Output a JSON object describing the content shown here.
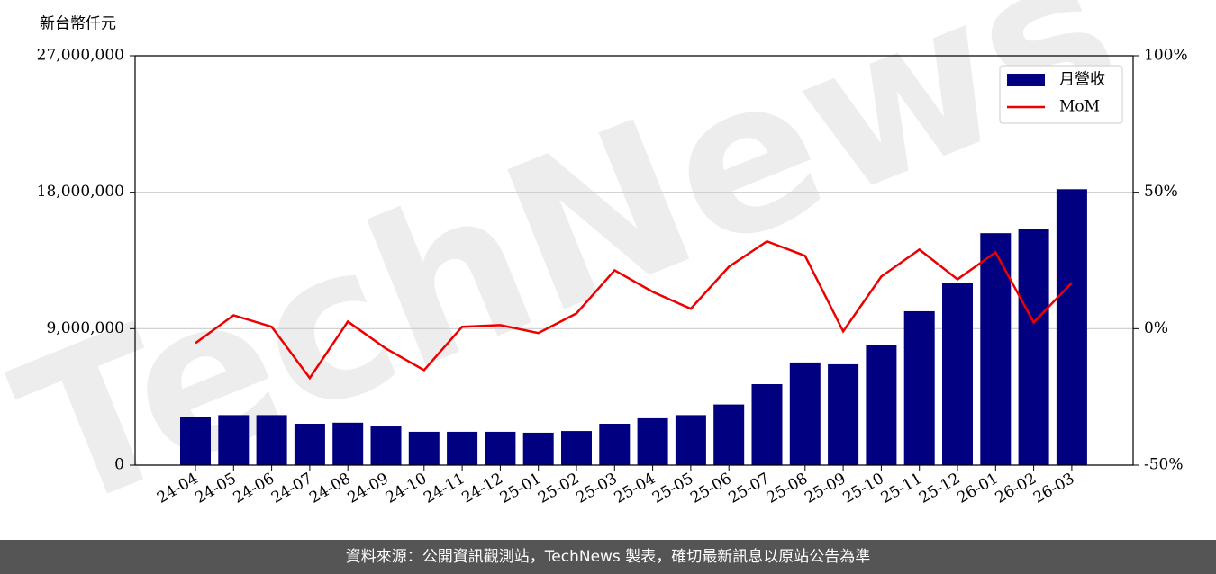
{
  "chart_data": {
    "type": "combo",
    "y_label": "新台幣仟元",
    "watermark": "TechNews",
    "categories": [
      "24-04",
      "24-05",
      "24-06",
      "24-07",
      "24-08",
      "24-09",
      "24-10",
      "24-11",
      "24-12",
      "25-01",
      "25-02",
      "25-03",
      "25-04",
      "25-05",
      "25-06",
      "25-07",
      "25-08",
      "25-09",
      "25-10",
      "25-11",
      "25-12",
      "26-01",
      "26-02",
      "26-03"
    ],
    "series": [
      {
        "name": "月營收",
        "type": "bar",
        "color": "#000080",
        "values": [
          3200000,
          3300000,
          3300000,
          2730000,
          2800000,
          2550000,
          2200000,
          2200000,
          2200000,
          2140000,
          2250000,
          2730000,
          3090000,
          3300000,
          4000000,
          5340000,
          6770000,
          6650000,
          7900000,
          10150000,
          12000000,
          15300000,
          15600000,
          18200000
        ]
      },
      {
        "name": "MoM",
        "type": "line",
        "color": "#ee0000",
        "axis": "y2",
        "values": [
          -5.3,
          4.9,
          0.7,
          -18.1,
          2.6,
          -7.3,
          -15.2,
          0.7,
          1.3,
          -1.6,
          5.6,
          21.4,
          13.5,
          7.3,
          22.7,
          32.0,
          26.7,
          -1.0,
          19.1,
          29.0,
          18.1,
          28.0,
          2.3,
          16.8
        ]
      }
    ],
    "ylim": [
      0,
      27000000
    ],
    "yticks": [
      0,
      {
        "value": 9000000,
        "label": "9,000,000"
      },
      {
        "value": 18000000,
        "label": "18,000,000"
      },
      {
        "value": 27000000,
        "label": "27,000,000"
      }
    ],
    "y2lim": [
      -50,
      100
    ],
    "y2ticks": [
      {
        "value": -50,
        "label": "-50%"
      },
      {
        "value": 0,
        "label": "0%"
      },
      {
        "value": 50,
        "label": "50%"
      },
      {
        "value": 100,
        "label": "100%"
      }
    ],
    "grid": true,
    "legend": "upper right"
  },
  "footer": "資料來源：公開資訊觀測站，TechNews 製表，確切最新訊息以原站公告為準"
}
